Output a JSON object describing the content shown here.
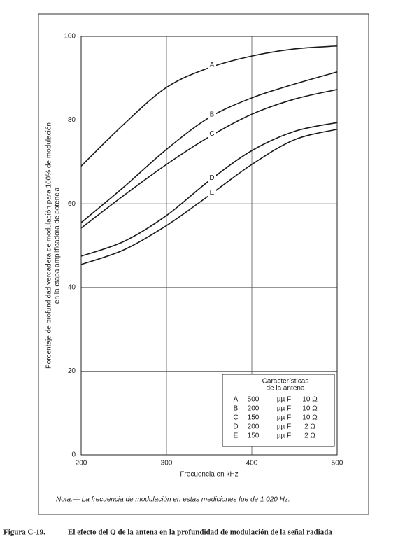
{
  "chart_data": {
    "type": "line",
    "xlabel": "Frecuencia en kHz",
    "ylabel": [
      "Porcentaje de profundidad verdadera de modulación para 100% de modulación",
      "en la etapa amplificadora de potencia"
    ],
    "x": [
      200,
      250,
      300,
      350,
      400,
      450,
      500
    ],
    "series": [
      {
        "name": "A",
        "color": "#1a1a1a",
        "values": [
          69,
          79,
          87.8,
          92.5,
          95.3,
          97,
          97.7
        ]
      },
      {
        "name": "B",
        "color": "#1a1a1a",
        "values": [
          55.5,
          64,
          73,
          80.6,
          85.3,
          88.6,
          91.5
        ]
      },
      {
        "name": "C",
        "color": "#1a1a1a",
        "values": [
          54.2,
          62,
          69.4,
          76,
          81.4,
          85,
          87.3
        ]
      },
      {
        "name": "D",
        "color": "#1a1a1a",
        "values": [
          47.5,
          51,
          57.2,
          65.5,
          72.7,
          77.3,
          79.4
        ]
      },
      {
        "name": "E",
        "color": "#1a1a1a",
        "values": [
          45.5,
          49,
          54.8,
          62,
          69.4,
          75.3,
          77.8
        ]
      }
    ],
    "xlim": [
      200,
      500
    ],
    "ylim": [
      0,
      100
    ],
    "xticks": [
      200,
      300,
      400,
      500
    ],
    "yticks": [
      0,
      20,
      40,
      60,
      80,
      100
    ],
    "grid": true,
    "legend_table": {
      "title": [
        "Características",
        "de la antena"
      ],
      "rows": [
        [
          "A",
          "500",
          "µµ F",
          "10 Ω"
        ],
        [
          "B",
          "200",
          "µµ F",
          "10 Ω"
        ],
        [
          "C",
          "150",
          "µµ F",
          "10 Ω"
        ],
        [
          "D",
          "200",
          "µµ F",
          "2 Ω"
        ],
        [
          "E",
          "150",
          "µµ F",
          "2 Ω"
        ]
      ]
    }
  },
  "note": "Nota.— La frecuencia de modulación en estas mediciones fue de 1 020 Hz.",
  "caption": {
    "label": "Figura C-19.",
    "text": "El efecto del Q de la antena en la profundidad de modulación de la señal radiada"
  }
}
